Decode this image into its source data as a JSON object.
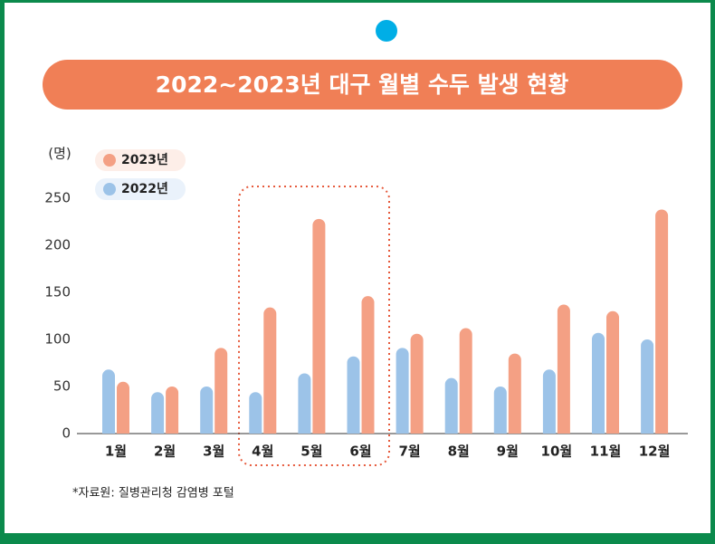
{
  "chart_data": {
    "type": "bar",
    "title": "2022~2023년 대구 월별 수두 발생 현황",
    "y_axis_label": "(명)",
    "categories": [
      "1월",
      "2월",
      "3월",
      "4월",
      "5월",
      "6월",
      "7월",
      "8월",
      "9월",
      "10월",
      "11월",
      "12월"
    ],
    "series": [
      {
        "name": "2022년",
        "color": "#9cc3e8",
        "values": [
          68,
          44,
          50,
          44,
          64,
          82,
          91,
          59,
          50,
          68,
          107,
          100
        ]
      },
      {
        "name": "2023년",
        "color": "#f4a084",
        "values": [
          55,
          50,
          91,
          134,
          228,
          146,
          106,
          112,
          85,
          137,
          130,
          238
        ]
      }
    ],
    "ylim": [
      0,
      250
    ],
    "yticks": [
      0,
      50,
      100,
      150,
      200,
      250
    ],
    "source": "*자료원: 질병관리청 감염병 포털"
  }
}
